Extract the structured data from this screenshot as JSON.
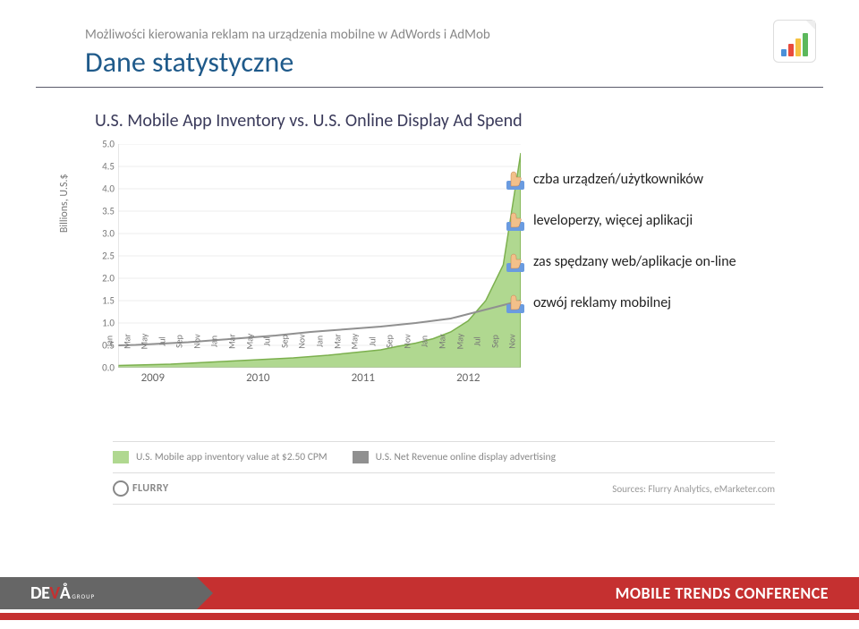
{
  "header": {
    "breadcrumb": "Możliwości kierowania reklam na urządzenia mobilne w AdWords i AdMob",
    "title": "Dane statystyczne"
  },
  "report_icon": {
    "bar_colors": [
      "#4a90d9",
      "#e94b3c",
      "#f5c242",
      "#5cb85c"
    ]
  },
  "chart": {
    "title": "U.S. Mobile App Inventory vs. U.S. Online Display Ad Spend",
    "y_axis_label": "Billions, U.S.$",
    "type": "area+line",
    "ylim": [
      0,
      5.0
    ],
    "yticks": [
      0.0,
      0.5,
      1.0,
      1.5,
      2.0,
      2.5,
      3.0,
      3.5,
      4.0,
      4.5,
      5.0
    ],
    "xticks": [
      "Jan",
      "Mar",
      "May",
      "Jul",
      "Sep",
      "Nov",
      "Jan",
      "Mar",
      "May",
      "Jul",
      "Sep",
      "Nov",
      "Jan",
      "Mar",
      "May",
      "Jul",
      "Sep",
      "Nov",
      "Jan",
      "Mar",
      "May",
      "Jul",
      "Sep",
      "Nov"
    ],
    "years": [
      "2009",
      "2010",
      "2011",
      "2012"
    ],
    "series_area": {
      "label": "U.S. Mobile app inventory value at $2.50 CPM",
      "color_fill": "#b0d890",
      "color_stroke": "#7cb04e",
      "values": [
        0.05,
        0.06,
        0.07,
        0.08,
        0.1,
        0.12,
        0.14,
        0.16,
        0.18,
        0.2,
        0.22,
        0.25,
        0.28,
        0.32,
        0.36,
        0.4,
        0.48,
        0.55,
        0.65,
        0.8,
        1.05,
        1.5,
        2.3,
        4.8
      ]
    },
    "series_line": {
      "label": "U.S. Net Revenue online display advertising",
      "color_stroke": "#909090",
      "values": [
        0.5,
        0.51,
        0.53,
        0.55,
        0.57,
        0.6,
        0.63,
        0.66,
        0.69,
        0.72,
        0.76,
        0.8,
        0.83,
        0.86,
        0.89,
        0.92,
        0.96,
        1.0,
        1.05,
        1.1,
        1.2,
        1.3,
        1.4,
        1.5
      ]
    },
    "background_color": "#ffffff",
    "grid_color": "#eeeeee",
    "axis_color": "#cccccc"
  },
  "bullets": {
    "items": [
      "czba urządzeń/użytkowników",
      "leveloperzy, więcej aplikacji",
      "zas spędzany web/aplikacje on-line",
      "ozwój reklamy mobilnej"
    ],
    "icon_colors": {
      "shirt": "#6a9be0",
      "hand": "#f2c08a"
    }
  },
  "source": {
    "logo": "FLURRY",
    "text": "Sources: Flurry Analytics, eMarketer.com"
  },
  "footer": {
    "left_logo": {
      "brand": "DE",
      "brand2": "V",
      "accent": "Å",
      "group": "GROUP"
    },
    "right_text": "MOBILE TRENDS CONFERENCE",
    "colors": {
      "left_bg": "#666666",
      "right_bg": "#c53030",
      "text": "#ffffff"
    }
  }
}
